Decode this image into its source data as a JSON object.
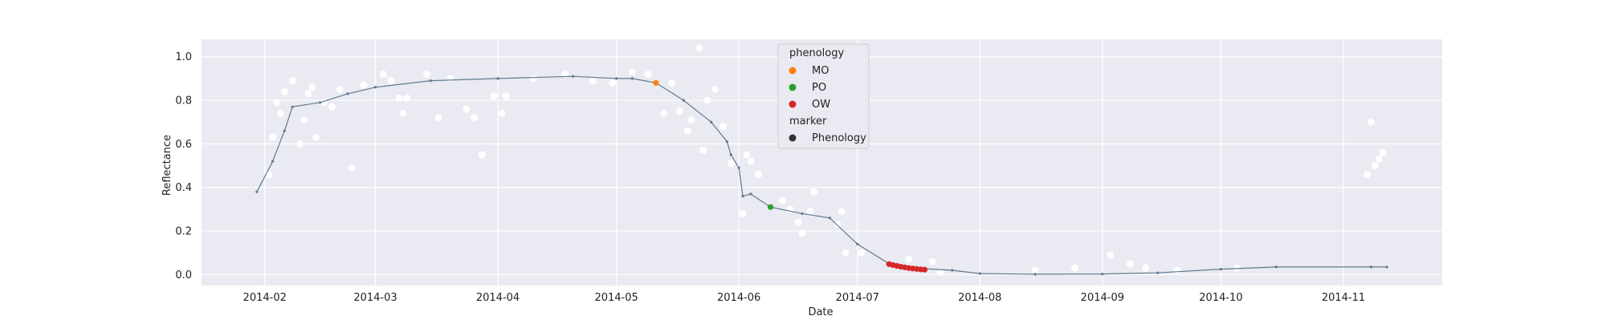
{
  "chart_data": {
    "type": "scatter",
    "xlabel": "Date",
    "ylabel": "Reflectance",
    "xlim": [
      "2014-01-16",
      "2014-11-26"
    ],
    "ylim": [
      -0.05,
      1.08
    ],
    "x_ticks": [
      "2014-02-01",
      "2014-03-01",
      "2014-04-01",
      "2014-05-01",
      "2014-06-01",
      "2014-07-01",
      "2014-08-01",
      "2014-09-01",
      "2014-10-01",
      "2014-11-01"
    ],
    "x_tick_labels": [
      "2014-02",
      "2014-03",
      "2014-04",
      "2014-05",
      "2014-06",
      "2014-07",
      "2014-08",
      "2014-09",
      "2014-10",
      "2014-11"
    ],
    "y_ticks": [
      0.0,
      0.2,
      0.4,
      0.6,
      0.8,
      1.0
    ],
    "y_tick_labels": [
      "0.0",
      "0.2",
      "0.4",
      "0.6",
      "0.8",
      "1.0"
    ],
    "grid": true,
    "legend": {
      "placement": "top-center",
      "title_phenology": "phenology",
      "items": [
        {
          "label": "MO",
          "color": "#ff7f0e"
        },
        {
          "label": "PO",
          "color": "#2ca02c"
        },
        {
          "label": "OW",
          "color": "#d62728"
        }
      ],
      "title_marker": "marker",
      "marker_item": {
        "label": "Phenology",
        "color": "#333333"
      }
    },
    "colors": {
      "background": "#eaeaf2",
      "grid": "#ffffff",
      "line": "#5f7a8c",
      "observations": "#ffffff"
    },
    "fitted_curve": {
      "points": [
        [
          "2014-01-30",
          0.38
        ],
        [
          "2014-02-03",
          0.52
        ],
        [
          "2014-02-06",
          0.66
        ],
        [
          "2014-02-08",
          0.77
        ],
        [
          "2014-02-15",
          0.79
        ],
        [
          "2014-02-22",
          0.83
        ],
        [
          "2014-03-01",
          0.86
        ],
        [
          "2014-03-15",
          0.89
        ],
        [
          "2014-04-01",
          0.9
        ],
        [
          "2014-04-20",
          0.91
        ],
        [
          "2014-05-01",
          0.9
        ],
        [
          "2014-05-05",
          0.9
        ],
        [
          "2014-05-11",
          0.88
        ],
        [
          "2014-05-18",
          0.8
        ],
        [
          "2014-05-25",
          0.7
        ],
        [
          "2014-05-29",
          0.61
        ],
        [
          "2014-05-30",
          0.55
        ],
        [
          "2014-06-01",
          0.49
        ],
        [
          "2014-06-02",
          0.36
        ],
        [
          "2014-06-04",
          0.37
        ],
        [
          "2014-06-09",
          0.31
        ],
        [
          "2014-06-17",
          0.28
        ],
        [
          "2014-06-24",
          0.26
        ],
        [
          "2014-07-01",
          0.14
        ],
        [
          "2014-07-09",
          0.05
        ],
        [
          "2014-07-15",
          0.03
        ],
        [
          "2014-07-25",
          0.02
        ],
        [
          "2014-08-01",
          0.005
        ],
        [
          "2014-08-15",
          0.002
        ],
        [
          "2014-09-01",
          0.003
        ],
        [
          "2014-09-15",
          0.008
        ],
        [
          "2014-10-01",
          0.025
        ],
        [
          "2014-10-15",
          0.035
        ],
        [
          "2014-11-08",
          0.035
        ],
        [
          "2014-11-12",
          0.035
        ]
      ]
    },
    "observations": [
      [
        "2014-02-02",
        0.46
      ],
      [
        "2014-02-03",
        0.63
      ],
      [
        "2014-02-04",
        0.79
      ],
      [
        "2014-02-05",
        0.74
      ],
      [
        "2014-02-06",
        0.84
      ],
      [
        "2014-02-08",
        0.89
      ],
      [
        "2014-02-10",
        0.6
      ],
      [
        "2014-02-11",
        0.71
      ],
      [
        "2014-02-12",
        0.83
      ],
      [
        "2014-02-13",
        0.86
      ],
      [
        "2014-02-14",
        0.63
      ],
      [
        "2014-02-16",
        0.79
      ],
      [
        "2014-02-18",
        0.77
      ],
      [
        "2014-02-20",
        0.85
      ],
      [
        "2014-02-23",
        0.49
      ],
      [
        "2014-02-26",
        0.87
      ],
      [
        "2014-03-03",
        0.92
      ],
      [
        "2014-03-05",
        0.89
      ],
      [
        "2014-03-07",
        0.81
      ],
      [
        "2014-03-08",
        0.74
      ],
      [
        "2014-03-09",
        0.81
      ],
      [
        "2014-03-14",
        0.92
      ],
      [
        "2014-03-17",
        0.72
      ],
      [
        "2014-03-20",
        0.9
      ],
      [
        "2014-03-24",
        0.76
      ],
      [
        "2014-03-26",
        0.72
      ],
      [
        "2014-03-28",
        0.55
      ],
      [
        "2014-03-31",
        0.82
      ],
      [
        "2014-04-02",
        0.74
      ],
      [
        "2014-04-03",
        0.82
      ],
      [
        "2014-04-10",
        0.9
      ],
      [
        "2014-04-18",
        0.92
      ],
      [
        "2014-04-25",
        0.89
      ],
      [
        "2014-04-30",
        0.88
      ],
      [
        "2014-05-05",
        0.93
      ],
      [
        "2014-05-09",
        0.92
      ],
      [
        "2014-05-13",
        0.74
      ],
      [
        "2014-05-15",
        0.88
      ],
      [
        "2014-05-17",
        0.75
      ],
      [
        "2014-05-19",
        0.66
      ],
      [
        "2014-05-20",
        0.71
      ],
      [
        "2014-05-22",
        1.04
      ],
      [
        "2014-05-23",
        0.57
      ],
      [
        "2014-05-24",
        0.8
      ],
      [
        "2014-05-26",
        0.85
      ],
      [
        "2014-05-28",
        0.68
      ],
      [
        "2014-05-30",
        0.51
      ],
      [
        "2014-06-02",
        0.28
      ],
      [
        "2014-06-03",
        0.55
      ],
      [
        "2014-06-04",
        0.52
      ],
      [
        "2014-06-06",
        0.46
      ],
      [
        "2014-06-12",
        0.34
      ],
      [
        "2014-06-14",
        0.3
      ],
      [
        "2014-06-16",
        0.24
      ],
      [
        "2014-06-17",
        0.19
      ],
      [
        "2014-06-19",
        0.29
      ],
      [
        "2014-06-20",
        0.38
      ],
      [
        "2014-06-26",
        0.23
      ],
      [
        "2014-06-27",
        0.29
      ],
      [
        "2014-06-28",
        0.1
      ],
      [
        "2014-07-02",
        0.1
      ],
      [
        "2014-07-14",
        0.07
      ],
      [
        "2014-07-20",
        0.06
      ],
      [
        "2014-07-22",
        0.01
      ],
      [
        "2014-08-15",
        0.02
      ],
      [
        "2014-08-25",
        0.03
      ],
      [
        "2014-09-03",
        0.09
      ],
      [
        "2014-09-08",
        0.05
      ],
      [
        "2014-09-12",
        0.03
      ],
      [
        "2014-09-20",
        0.02
      ],
      [
        "2014-10-05",
        0.03
      ],
      [
        "2014-11-07",
        0.46
      ],
      [
        "2014-11-08",
        0.7
      ],
      [
        "2014-11-09",
        0.5
      ],
      [
        "2014-11-10",
        0.53
      ],
      [
        "2014-11-11",
        0.56
      ]
    ],
    "phenology_points": [
      {
        "label": "MO",
        "dates": [
          "2014-05-11"
        ],
        "value": 0.88
      },
      {
        "label": "PO",
        "dates": [
          "2014-06-09"
        ],
        "value": 0.31
      },
      {
        "label": "OW",
        "dates": [
          "2014-07-09",
          "2014-07-10",
          "2014-07-11",
          "2014-07-12",
          "2014-07-13",
          "2014-07-14",
          "2014-07-15",
          "2014-07-16",
          "2014-07-17",
          "2014-07-18"
        ],
        "values": [
          0.048,
          0.044,
          0.04,
          0.036,
          0.033,
          0.03,
          0.028,
          0.026,
          0.024,
          0.023
        ]
      }
    ]
  }
}
